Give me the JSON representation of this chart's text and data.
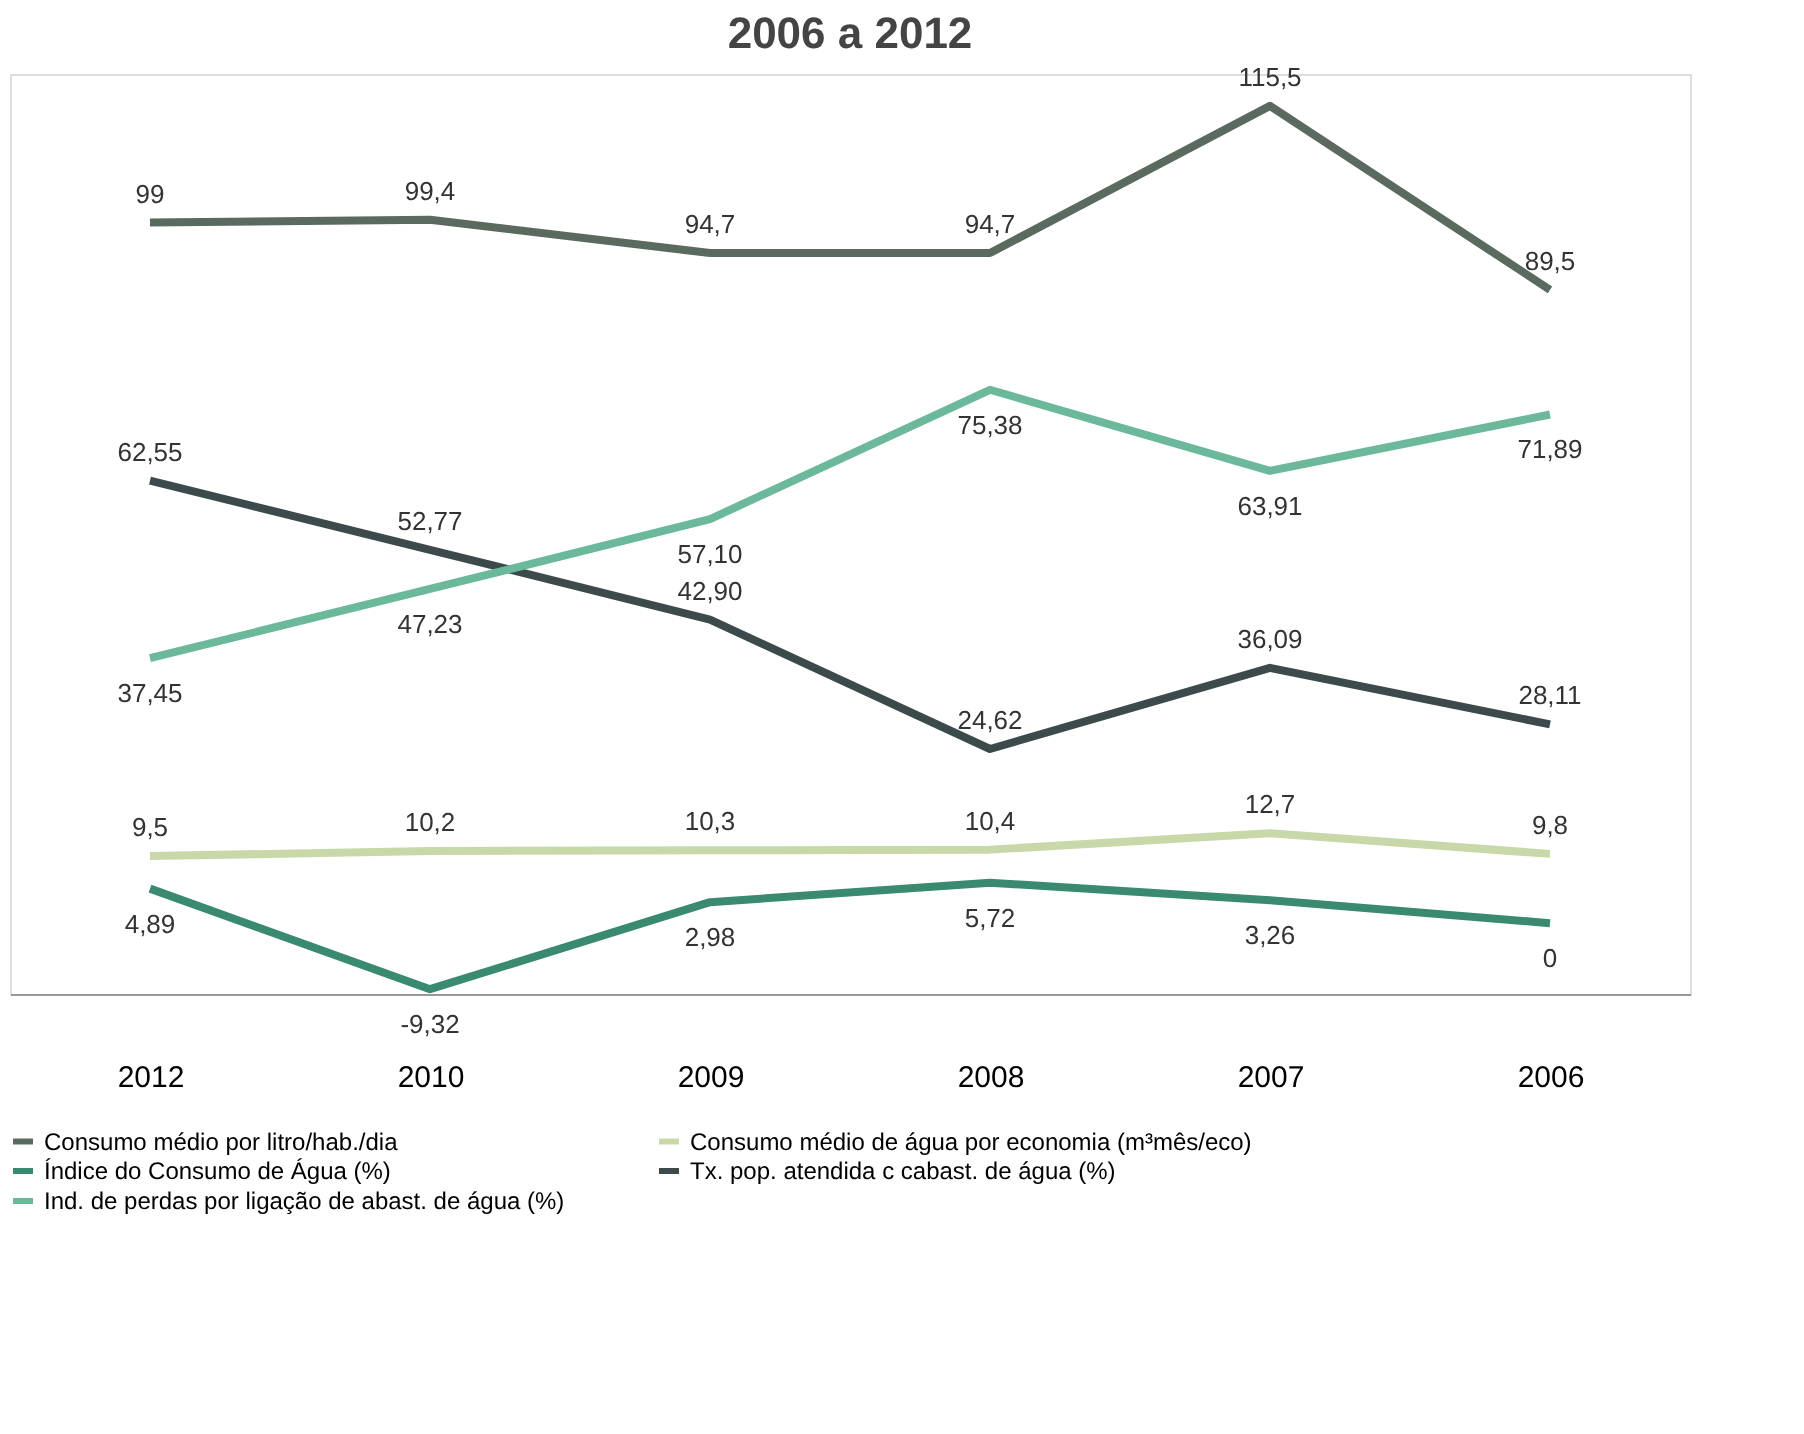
{
  "chart_data": {
    "type": "line",
    "title": "2006 a 2012",
    "categories": [
      "2012",
      "2010",
      "2009",
      "2008",
      "2007",
      "2006"
    ],
    "legend": "bottom",
    "grid": false,
    "marker": "none",
    "line_style": "solid",
    "series": [
      {
        "name": "Consumo médio por litro/hab./dia",
        "color": "#5b6a5f",
        "values": [
          99,
          99.4,
          94.7,
          94.7,
          115.5,
          89.5
        ],
        "value_labels": [
          "99",
          "99,4",
          "94,7",
          "94,7",
          "115,5",
          "89,5"
        ]
      },
      {
        "name": "Consumo médio de água por economia (m³mês/eco)",
        "color": "#c8d8a8",
        "values": [
          9.5,
          10.2,
          10.3,
          10.4,
          12.7,
          9.8
        ],
        "value_labels": [
          "9,5",
          "10,2",
          "10,3",
          "10,4",
          "12,7",
          "9,8"
        ]
      },
      {
        "name": "Índice do Consumo de Água (%)",
        "color": "#3a8a72",
        "values": [
          4.89,
          -9.32,
          2.98,
          5.72,
          3.26,
          0
        ],
        "value_labels": [
          "4,89",
          "-9,32",
          "2,98",
          "5,72",
          "3,26",
          "0"
        ]
      },
      {
        "name": "Tx. pop. atendida c cabast. de água (%)",
        "color": "#3d4a4c",
        "values": [
          62.55,
          52.77,
          42.9,
          24.62,
          36.09,
          28.11
        ],
        "value_labels": [
          "62,55",
          "52,77",
          "42,90",
          "24,62",
          "36,09",
          "28,11"
        ]
      },
      {
        "name": "Ind. de perdas por ligação de abast. de água (%)",
        "color": "#6bb89a",
        "values": [
          37.45,
          47.23,
          57.1,
          75.38,
          63.91,
          71.89
        ],
        "value_labels": [
          "37,45",
          "47,23",
          "57,10",
          "75,38",
          "63,91",
          "71,89"
        ]
      }
    ]
  }
}
